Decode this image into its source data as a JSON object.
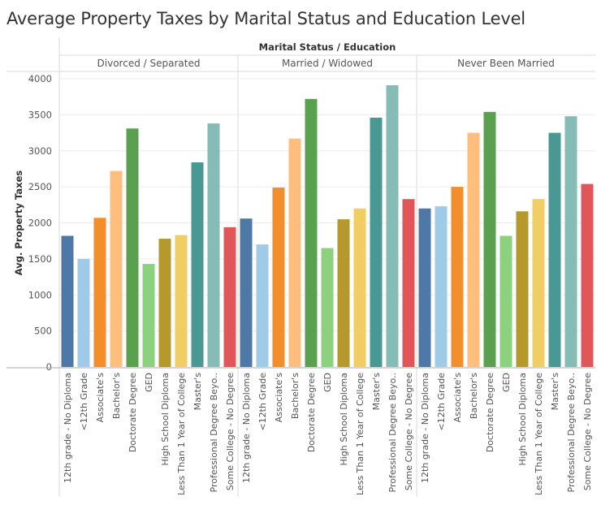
{
  "title": "Average Property Taxes by Marital Status and Education Level",
  "chart_data": {
    "type": "bar",
    "title": "Average Property Taxes by Marital Status and Education Level",
    "header_label": "Marital Status / Education",
    "ylabel": "Avg. Property Taxes",
    "xlabel": "",
    "ylim": [
      0,
      4000
    ],
    "yticks": [
      0,
      500,
      1000,
      1500,
      2000,
      2500,
      3000,
      3500,
      4000
    ],
    "grid": true,
    "legend": "none",
    "categories": [
      "12th grade - No Diploma",
      "<12th Grade",
      "Associate's",
      "Bachelor's",
      "Doctorate Degree",
      "GED",
      "High School Diploma",
      "Less Than 1 Year of College",
      "Master's",
      "Professional Degree Beyo..",
      "Some College - No Degree"
    ],
    "colors": [
      "#4e79a7",
      "#a0cbe8",
      "#f28e2b",
      "#ffbe7d",
      "#59a14f",
      "#8cd17d",
      "#b6992d",
      "#f1ce63",
      "#499894",
      "#86bcb6",
      "#e15759"
    ],
    "panels": [
      {
        "name": "Divorced / Separated",
        "values": [
          1820,
          1500,
          2070,
          2720,
          3310,
          1430,
          1780,
          1830,
          2840,
          3380,
          1940
        ]
      },
      {
        "name": "Married / Widowed",
        "values": [
          2060,
          1700,
          2490,
          3170,
          3720,
          1650,
          2050,
          2200,
          3460,
          3910,
          2330
        ]
      },
      {
        "name": "Never Been Married",
        "values": [
          2200,
          2230,
          2500,
          3250,
          3540,
          1820,
          2160,
          2330,
          3250,
          3480,
          2540
        ]
      }
    ]
  }
}
